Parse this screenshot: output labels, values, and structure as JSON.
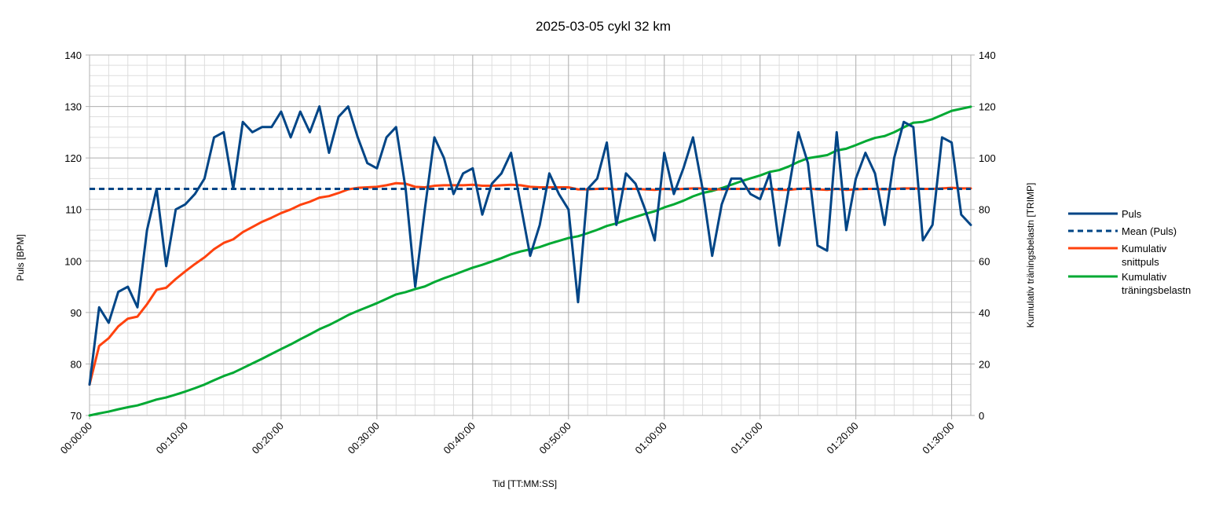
{
  "chart_data": {
    "type": "line",
    "title": "2025-03-05 cykl 32 km",
    "xlabel": "Tid [TT:MM:SS]",
    "ylabel_left": "Puls [BPM]",
    "ylabel_right": "Kumulativ träningsbelastn [TRIMP]",
    "x_unit": "minutes",
    "xlim": [
      0,
      92
    ],
    "ylim_left": [
      70,
      140
    ],
    "ylim_right": [
      0,
      140
    ],
    "x_ticks": [
      "00:00:00",
      "00:10:00",
      "00:20:00",
      "00:30:00",
      "00:40:00",
      "00:50:00",
      "01:00:00",
      "01:10:00",
      "01:20:00",
      "01:30:00"
    ],
    "y_ticks_left": [
      "70",
      "80",
      "90",
      "100",
      "110",
      "120",
      "130",
      "140"
    ],
    "y_ticks_right": [
      "0",
      "20",
      "40",
      "60",
      "80",
      "100",
      "120",
      "140"
    ],
    "grid": true,
    "legend_position": "right",
    "series": [
      {
        "name": "Puls",
        "axis": "left",
        "color": "#004586",
        "style": "solid",
        "x": [
          0,
          1,
          2,
          3,
          4,
          5,
          6,
          7,
          8,
          9,
          10,
          11,
          12,
          13,
          14,
          15,
          16,
          17,
          18,
          19,
          20,
          21,
          22,
          23,
          24,
          25,
          26,
          27,
          28,
          29,
          30,
          31,
          32,
          33,
          34,
          35,
          36,
          37,
          38,
          39,
          40,
          41,
          42,
          43,
          44,
          45,
          46,
          47,
          48,
          49,
          50,
          51,
          52,
          53,
          54,
          55,
          56,
          57,
          58,
          59,
          60,
          61,
          62,
          63,
          64,
          65,
          66,
          67,
          68,
          69,
          70,
          71,
          72,
          73,
          74,
          75,
          76,
          77,
          78,
          79,
          80,
          81,
          82,
          83,
          84,
          85,
          86,
          87,
          88,
          89,
          90,
          91,
          92
        ],
        "values": [
          76,
          91,
          88,
          94,
          95,
          91,
          106,
          114,
          99,
          110,
          111,
          113,
          116,
          124,
          125,
          114,
          127,
          125,
          126,
          126,
          129,
          124,
          129,
          125,
          130,
          121,
          128,
          130,
          124,
          119,
          118,
          124,
          126,
          114,
          95,
          110,
          124,
          120,
          113,
          117,
          118,
          109,
          115,
          117,
          121,
          111,
          101,
          107,
          117,
          113,
          110,
          92,
          114,
          116,
          123,
          107,
          117,
          115,
          110,
          104,
          121,
          113,
          118,
          124,
          114,
          101,
          111,
          116,
          116,
          113,
          112,
          117,
          103,
          114,
          125,
          119,
          103,
          102,
          125,
          106,
          116,
          121,
          117,
          107,
          120,
          127,
          126,
          104,
          107,
          124,
          123,
          109,
          107
        ]
      },
      {
        "name": "Mean (Puls)",
        "axis": "left",
        "color": "#004586",
        "style": "dashed",
        "x": [
          0,
          92
        ],
        "values": [
          114,
          114
        ]
      },
      {
        "name": "Kumulativ snittpuls",
        "axis": "left",
        "color": "#ff420e",
        "style": "solid",
        "x": [
          0,
          1,
          2,
          3,
          4,
          5,
          6,
          7,
          8,
          9,
          10,
          11,
          12,
          13,
          14,
          15,
          16,
          17,
          18,
          19,
          20,
          21,
          22,
          23,
          24,
          25,
          26,
          27,
          28,
          29,
          30,
          31,
          32,
          33,
          34,
          35,
          36,
          37,
          38,
          39,
          40,
          41,
          42,
          43,
          44,
          45,
          46,
          47,
          48,
          49,
          50,
          51,
          52,
          53,
          54,
          55,
          56,
          57,
          58,
          59,
          60,
          61,
          62,
          63,
          64,
          65,
          66,
          67,
          68,
          69,
          70,
          71,
          72,
          73,
          74,
          75,
          76,
          77,
          78,
          79,
          80,
          81,
          82,
          83,
          84,
          85,
          86,
          87,
          88,
          89,
          90,
          91,
          92
        ],
        "values": [
          76,
          83.5,
          85,
          87.3,
          88.8,
          89.2,
          91.6,
          94.4,
          94.8,
          96.5,
          98,
          99.4,
          100.7,
          102.3,
          103.5,
          104.2,
          105.6,
          106.6,
          107.6,
          108.4,
          109.3,
          110,
          110.9,
          111.5,
          112.3,
          112.6,
          113.2,
          113.9,
          114.2,
          114.3,
          114.4,
          114.7,
          115.1,
          115,
          114.4,
          114.3,
          114.6,
          114.7,
          114.7,
          114.7,
          114.8,
          114.6,
          114.6,
          114.7,
          114.8,
          114.7,
          114.4,
          114.3,
          114.3,
          114.3,
          114.3,
          113.9,
          113.9,
          114,
          114.1,
          113.9,
          114,
          114,
          113.9,
          113.8,
          114,
          113.9,
          114,
          114.1,
          114.1,
          113.9,
          113.9,
          114,
          114,
          114,
          113.9,
          114,
          113.8,
          113.8,
          114,
          114.1,
          113.9,
          113.8,
          114,
          113.8,
          113.9,
          114,
          114,
          113.9,
          114,
          114.1,
          114.1,
          114,
          114,
          114.1,
          114.2,
          114.1,
          114.1
        ]
      },
      {
        "name": "Kumulativ träningsbelastn",
        "axis": "right",
        "color": "#00a933",
        "style": "solid",
        "x": [
          0,
          1,
          2,
          3,
          4,
          5,
          6,
          7,
          8,
          9,
          10,
          11,
          12,
          13,
          14,
          15,
          16,
          17,
          18,
          19,
          20,
          21,
          22,
          23,
          24,
          25,
          26,
          27,
          28,
          29,
          30,
          31,
          32,
          33,
          34,
          35,
          36,
          37,
          38,
          39,
          40,
          41,
          42,
          43,
          44,
          45,
          46,
          47,
          48,
          49,
          50,
          51,
          52,
          53,
          54,
          55,
          56,
          57,
          58,
          59,
          60,
          61,
          62,
          63,
          64,
          65,
          66,
          67,
          68,
          69,
          70,
          71,
          72,
          73,
          74,
          75,
          76,
          77,
          78,
          79,
          80,
          81,
          82,
          83,
          84,
          85,
          86,
          87,
          88,
          89,
          90,
          91,
          92
        ],
        "values": [
          0,
          0.8,
          1.5,
          2.4,
          3.2,
          3.9,
          5,
          6.2,
          7,
          8.1,
          9.3,
          10.6,
          12,
          13.7,
          15.3,
          16.6,
          18.4,
          20.2,
          22,
          23.9,
          25.8,
          27.6,
          29.6,
          31.5,
          33.5,
          35.1,
          37,
          39,
          40.6,
          42.1,
          43.6,
          45.3,
          47,
          47.9,
          49.1,
          50.1,
          51.8,
          53.3,
          54.6,
          56,
          57.4,
          58.5,
          59.8,
          61.1,
          62.6,
          63.7,
          64.5,
          65.4,
          66.7,
          67.8,
          68.9,
          69.6,
          70.8,
          72.1,
          73.6,
          74.6,
          75.9,
          77.1,
          78.3,
          79.3,
          80.8,
          82,
          83.4,
          85.1,
          86.4,
          87.2,
          88.3,
          89.6,
          90.9,
          92.1,
          93.2,
          94.6,
          95.3,
          96.7,
          98.5,
          99.9,
          100.5,
          101.1,
          102.9,
          103.6,
          105,
          106.5,
          107.8,
          108.5,
          110,
          111.9,
          113.7,
          114,
          115.1,
          116.7,
          118.3,
          119.1,
          119.9
        ]
      }
    ]
  }
}
